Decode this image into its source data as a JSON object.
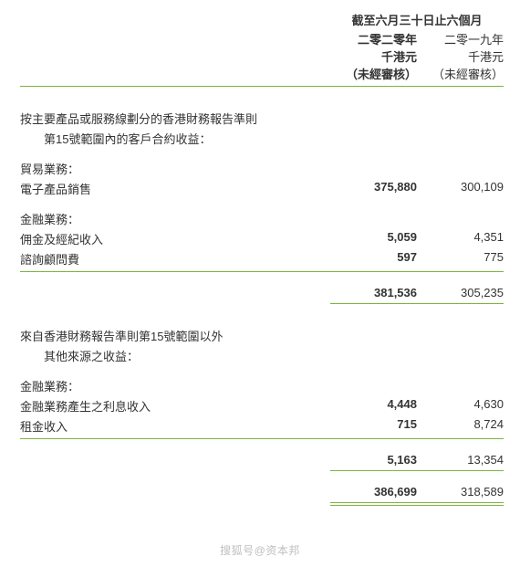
{
  "header": {
    "period": "截至六月三十日止六個月",
    "col1_year": "二零二零年",
    "col2_year": "二零一九年",
    "col1_unit": "千港元",
    "col2_unit": "千港元",
    "col1_audit": "（未經審核）",
    "col2_audit": "（未經審核）"
  },
  "section1": {
    "title1": "按主要產品或服務線劃分的香港財務報告準則",
    "title2": "第15號範圍內的客戶合約收益：",
    "trade_label": "貿易業務：",
    "elec_label": "電子產品銷售",
    "elec_v1": "375,880",
    "elec_v2": "300,109",
    "fin_label": "金融業務：",
    "comm_label": "佣金及經紀收入",
    "comm_v1": "5,059",
    "comm_v2": "4,351",
    "adv_label": "諮詢顧問費",
    "adv_v1": "597",
    "adv_v2": "775",
    "subtotal_v1": "381,536",
    "subtotal_v2": "305,235"
  },
  "section2": {
    "title1": "來自香港財務報告準則第15號範圍以外",
    "title2": "其他來源之收益：",
    "fin_label": "金融業務：",
    "int_label": "金融業務產生之利息收入",
    "int_v1": "4,448",
    "int_v2": "4,630",
    "rent_label": "租金收入",
    "rent_v1": "715",
    "rent_v2": "8,724",
    "subtotal_v1": "5,163",
    "subtotal_v2": "13,354"
  },
  "total": {
    "v1": "386,699",
    "v2": "318,589"
  },
  "watermark": "搜狐号@资本邦"
}
